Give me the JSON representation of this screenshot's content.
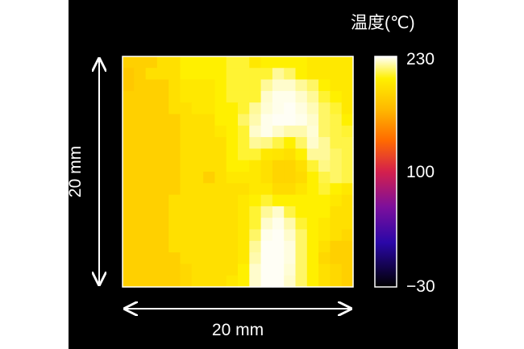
{
  "chart_data": {
    "type": "heatmap",
    "colorbar": {
      "title": "温度(℃)",
      "ticks": [
        "230",
        "100",
        "−30"
      ],
      "min": -30,
      "max": 230,
      "colormap": "thermal",
      "stops": [
        {
          "value": -30,
          "color": "#000000"
        },
        {
          "value": 20,
          "color": "#2a07a8"
        },
        {
          "value": 60,
          "color": "#7c0f9c"
        },
        {
          "value": 100,
          "color": "#d4204c"
        },
        {
          "value": 135,
          "color": "#ff6a00"
        },
        {
          "value": 170,
          "color": "#ffb800"
        },
        {
          "value": 205,
          "color": "#fff000"
        },
        {
          "value": 230,
          "color": "#ffffff"
        }
      ]
    },
    "xlabel": "20 mm",
    "ylabel": "20 mm",
    "grid_rows": 20,
    "grid_cols": 20,
    "values": [
      [
        185,
        185,
        185,
        195,
        195,
        205,
        205,
        205,
        205,
        210,
        210,
        200,
        205,
        205,
        205,
        205,
        200,
        200,
        200,
        200
      ],
      [
        180,
        185,
        195,
        195,
        195,
        205,
        205,
        205,
        205,
        210,
        210,
        210,
        210,
        220,
        215,
        205,
        200,
        200,
        200,
        200
      ],
      [
        180,
        185,
        185,
        185,
        195,
        200,
        200,
        200,
        205,
        210,
        210,
        210,
        220,
        225,
        225,
        220,
        215,
        205,
        200,
        200
      ],
      [
        185,
        185,
        185,
        185,
        195,
        200,
        200,
        200,
        205,
        210,
        210,
        210,
        225,
        228,
        228,
        225,
        220,
        210,
        205,
        200
      ],
      [
        185,
        185,
        185,
        185,
        195,
        195,
        200,
        200,
        205,
        205,
        210,
        220,
        226,
        228,
        229,
        227,
        223,
        215,
        210,
        200
      ],
      [
        185,
        185,
        185,
        185,
        185,
        195,
        195,
        195,
        205,
        205,
        215,
        222,
        228,
        229,
        229,
        228,
        225,
        215,
        212,
        205
      ],
      [
        185,
        185,
        185,
        185,
        185,
        195,
        195,
        195,
        200,
        205,
        210,
        225,
        228,
        225,
        222,
        222,
        226,
        215,
        212,
        210
      ],
      [
        185,
        185,
        185,
        185,
        185,
        195,
        195,
        195,
        195,
        205,
        210,
        220,
        218,
        212,
        205,
        215,
        225,
        220,
        212,
        212
      ],
      [
        185,
        185,
        185,
        185,
        185,
        195,
        195,
        195,
        195,
        205,
        210,
        210,
        200,
        198,
        195,
        205,
        220,
        220,
        215,
        212
      ],
      [
        185,
        185,
        185,
        185,
        185,
        195,
        195,
        195,
        195,
        205,
        205,
        200,
        195,
        188,
        188,
        195,
        210,
        218,
        215,
        212
      ],
      [
        185,
        185,
        185,
        185,
        185,
        195,
        195,
        185,
        195,
        200,
        200,
        200,
        195,
        188,
        188,
        192,
        205,
        212,
        215,
        212
      ],
      [
        185,
        185,
        185,
        185,
        185,
        195,
        195,
        195,
        195,
        195,
        195,
        200,
        200,
        192,
        192,
        198,
        205,
        210,
        205,
        200
      ],
      [
        185,
        185,
        185,
        185,
        195,
        195,
        195,
        195,
        195,
        195,
        200,
        205,
        210,
        205,
        205,
        205,
        205,
        205,
        200,
        195
      ],
      [
        185,
        185,
        185,
        185,
        195,
        195,
        195,
        195,
        195,
        195,
        200,
        210,
        220,
        225,
        212,
        205,
        205,
        205,
        195,
        195
      ],
      [
        185,
        185,
        185,
        185,
        195,
        195,
        195,
        195,
        195,
        195,
        200,
        210,
        225,
        228,
        222,
        210,
        205,
        200,
        195,
        195
      ],
      [
        185,
        185,
        185,
        185,
        195,
        195,
        195,
        195,
        195,
        195,
        200,
        215,
        228,
        229,
        225,
        215,
        205,
        200,
        195,
        190
      ],
      [
        185,
        185,
        185,
        185,
        195,
        195,
        195,
        195,
        195,
        195,
        200,
        220,
        229,
        229,
        227,
        215,
        205,
        195,
        185,
        185
      ],
      [
        185,
        185,
        185,
        185,
        185,
        195,
        195,
        195,
        195,
        195,
        200,
        222,
        229,
        229,
        227,
        215,
        205,
        190,
        185,
        185
      ],
      [
        185,
        185,
        185,
        185,
        185,
        190,
        195,
        195,
        195,
        195,
        205,
        225,
        229,
        229,
        226,
        215,
        205,
        195,
        190,
        185
      ],
      [
        185,
        185,
        185,
        185,
        185,
        190,
        195,
        195,
        195,
        200,
        205,
        225,
        229,
        229,
        225,
        215,
        205,
        195,
        190,
        185
      ]
    ]
  }
}
